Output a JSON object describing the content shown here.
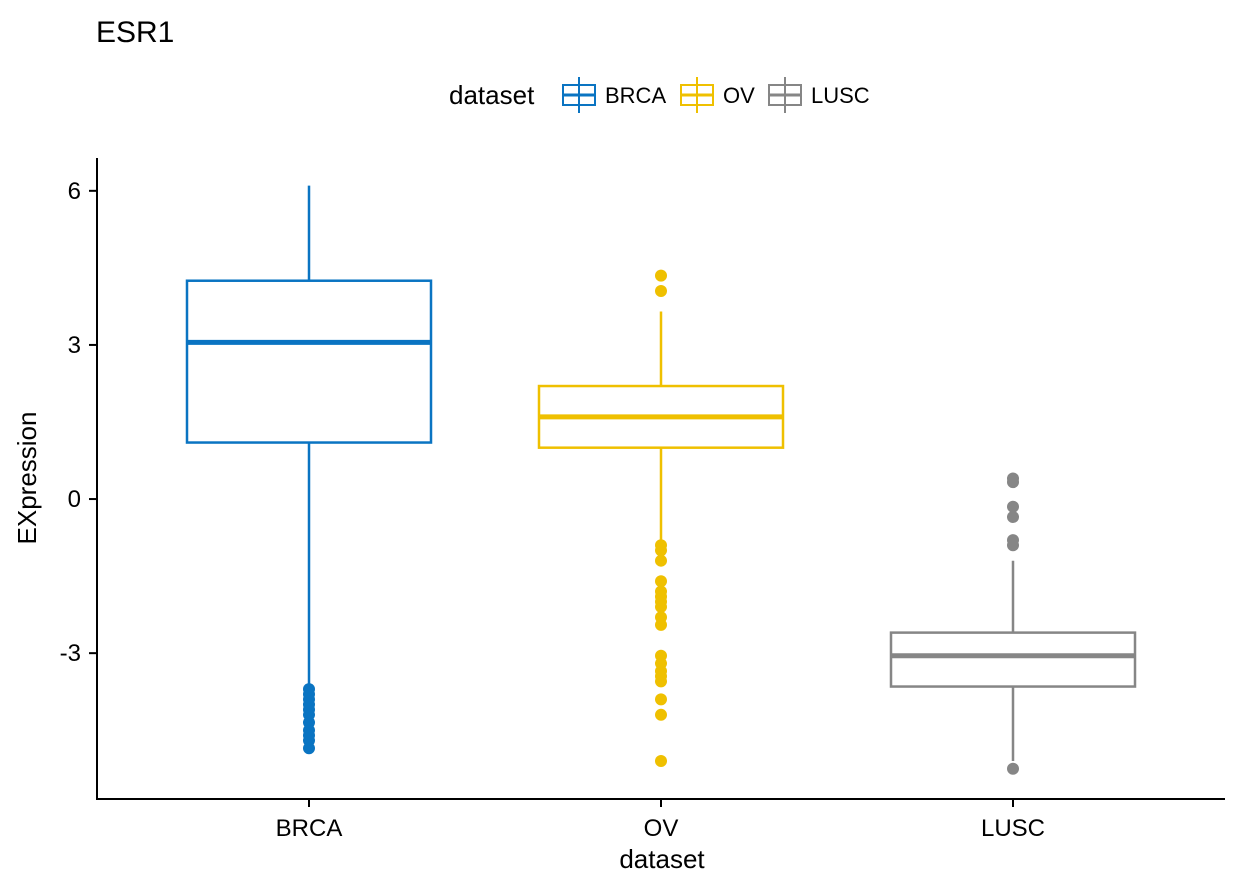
{
  "chart_data": {
    "type": "boxplot",
    "title": "ESR1",
    "xlabel": "dataset",
    "ylabel": "EXpression",
    "ylim": [
      -5.8,
      6.6
    ],
    "yticks": [
      6,
      3,
      0,
      -3
    ],
    "ytick_labels": [
      "6",
      "3",
      "0",
      "-3"
    ],
    "grid": false,
    "legend": {
      "title": "dataset",
      "position": "top"
    },
    "categories": [
      "BRCA",
      "OV",
      "LUSC"
    ],
    "series": [
      {
        "name": "BRCA",
        "color": "#0a74c2",
        "whisker_low": -3.6,
        "q1": 1.1,
        "median": 3.05,
        "q3": 4.25,
        "whisker_high": 6.1,
        "outliers": [
          -3.7,
          -3.8,
          -3.9,
          -4.0,
          -4.1,
          -4.2,
          -4.35,
          -4.5,
          -4.6,
          -4.7,
          -4.85
        ]
      },
      {
        "name": "OV",
        "color": "#efc000",
        "whisker_low": -0.8,
        "q1": 1.0,
        "median": 1.6,
        "q3": 2.2,
        "whisker_high": 3.65,
        "outliers": [
          4.35,
          4.05,
          -0.9,
          -1.0,
          -1.2,
          -1.6,
          -1.8,
          -1.9,
          -2.0,
          -2.1,
          -2.3,
          -2.45,
          -3.05,
          -3.2,
          -3.35,
          -3.45,
          -3.55,
          -3.9,
          -4.2,
          -5.1
        ]
      },
      {
        "name": "LUSC",
        "color": "#868686",
        "whisker_low": -5.1,
        "q1": -3.65,
        "median": -3.05,
        "q3": -2.6,
        "whisker_high": -1.2,
        "outliers": [
          0.4,
          0.33,
          -0.15,
          -0.35,
          -0.8,
          -0.9,
          -5.25
        ]
      }
    ]
  }
}
